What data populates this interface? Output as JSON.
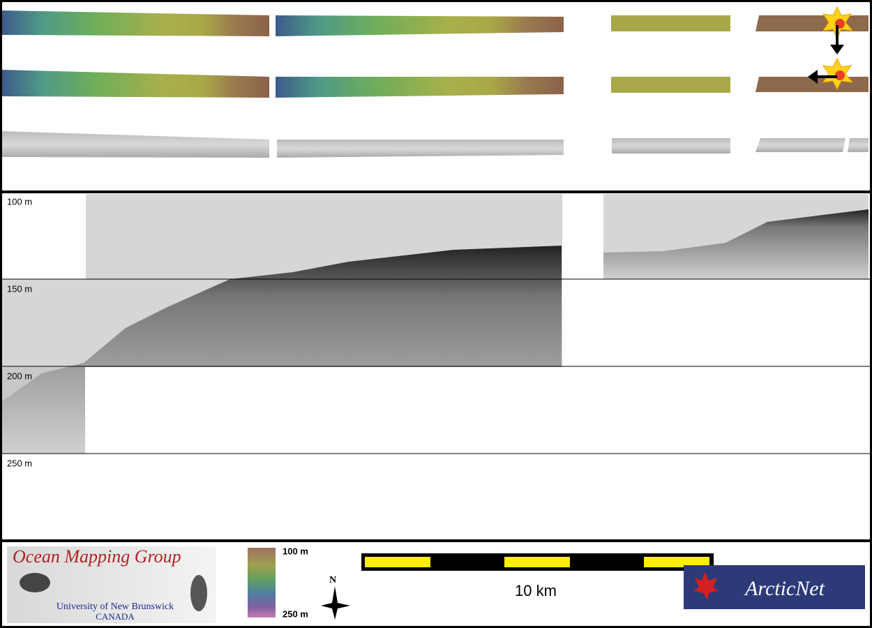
{
  "profile": {
    "depth_labels": [
      "100 m",
      "150 m",
      "200 m",
      "250 m"
    ]
  },
  "legend": {
    "top_label": "100 m",
    "bottom_label": "250 m"
  },
  "north_label": "N",
  "scale_bar": {
    "label": "10 km"
  },
  "logos": {
    "ocean_mapping": {
      "title": "Ocean Mapping Group",
      "university": "University of New Brunswick",
      "country": "CANADA"
    },
    "arcticnet": "ArcticNet"
  }
}
